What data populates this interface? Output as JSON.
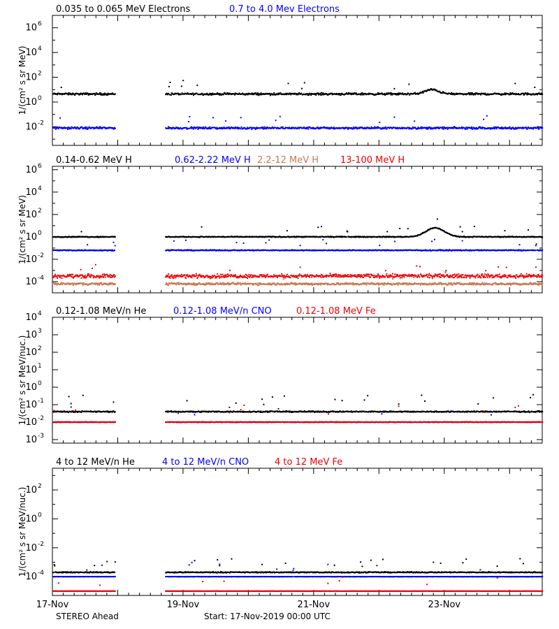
{
  "footer": {
    "spacecraft": "STEREO Ahead",
    "start": "Start: 17-Nov-2019 00:00 UTC"
  },
  "chart_data": [
    {
      "type": "scatter",
      "title": "",
      "xlabel": "",
      "ylabel": "1/(cm² s sr MeV)",
      "yscale": "log",
      "ylim_exp": [
        -3.5,
        7
      ],
      "ytick_exps": [
        -2,
        0,
        2,
        4,
        6
      ],
      "xlim_days": [
        0,
        7.5
      ],
      "xticks": [
        "17-Nov",
        "19-Nov",
        "21-Nov",
        "23-Nov"
      ],
      "gap_days": [
        0.95,
        1.72
      ],
      "series": [
        {
          "name": "0.035 to 0.065 MeV Electrons",
          "color": "#000000",
          "base_exp": 0.65,
          "spread": 0.12,
          "bump": {
            "day": 5.8,
            "height": 0.35,
            "width": 0.15
          }
        },
        {
          "name": "0.7 to 4.0 Mev Electrons",
          "color": "#0000ff",
          "base_exp": -2.1,
          "spread": 0.12
        }
      ]
    },
    {
      "type": "scatter",
      "title": "",
      "xlabel": "",
      "ylabel": "1/(cm² s sr MeV)",
      "yscale": "log",
      "ylim_exp": [
        -5,
        6.3
      ],
      "ytick_exps": [
        -4,
        -2,
        0,
        2,
        4,
        6
      ],
      "xlim_days": [
        0,
        7.5
      ],
      "xticks": [
        "17-Nov",
        "19-Nov",
        "21-Nov",
        "23-Nov"
      ],
      "gap_days": [
        0.95,
        1.72
      ],
      "series": [
        {
          "name": "0.14-0.62 MeV H",
          "color": "#000000",
          "base_exp": 0.0,
          "spread": 0.06,
          "bump": {
            "day": 5.85,
            "height": 0.8,
            "width": 0.2
          }
        },
        {
          "name": "0.62-2.22 MeV H",
          "color": "#0000ff",
          "base_exp": -1.2,
          "spread": 0.06
        },
        {
          "name": "2.2-12 MeV H",
          "color": "#c87850",
          "base_exp": -4.2,
          "spread": 0.15
        },
        {
          "name": "13-100 MeV H",
          "color": "#ee0000",
          "base_exp": -3.5,
          "spread": 0.25
        }
      ]
    },
    {
      "type": "scatter",
      "title": "",
      "xlabel": "",
      "ylabel": "1/(cm² s sr MeV/nuc.)",
      "yscale": "log",
      "ylim_exp": [
        -3.2,
        4
      ],
      "ytick_exps": [
        -3,
        -2,
        -1,
        0,
        1,
        2,
        3,
        4
      ],
      "xlim_days": [
        0,
        7.5
      ],
      "xticks": [
        "17-Nov",
        "19-Nov",
        "21-Nov",
        "23-Nov"
      ],
      "gap_days": [
        0.95,
        1.72
      ],
      "series": [
        {
          "name": "0.12-1.08 MeV/n He",
          "color": "#000000",
          "base_exp": -1.4,
          "spread": 0.05
        },
        {
          "name": "0.12-1.08 MeV/n CNO",
          "color": "#0000ff",
          "base_exp": -2.0,
          "spread": 0.02
        },
        {
          "name": "0.12-1.08 MeV Fe",
          "color": "#ee0000",
          "base_exp": -2.0,
          "spread": 0.02
        }
      ]
    },
    {
      "type": "scatter",
      "title": "",
      "xlabel": "",
      "ylabel": "1/(cm² s sr MeV/nuc.)",
      "yscale": "log",
      "ylim_exp": [
        -5.3,
        3.5
      ],
      "ytick_exps": [
        -4,
        -2,
        0,
        2
      ],
      "xlim_days": [
        0,
        7.5
      ],
      "xticks": [
        "17-Nov",
        "19-Nov",
        "21-Nov",
        "23-Nov"
      ],
      "gap_days": [
        0.95,
        1.72
      ],
      "series": [
        {
          "name": "4 to 12 MeV/n He",
          "color": "#000000",
          "base_exp": -3.7,
          "spread": 0.05
        },
        {
          "name": "4 to 12 MeV/n CNO",
          "color": "#0000ff",
          "base_exp": -4.0,
          "spread": 0.01
        },
        {
          "name": "4 to 12 MeV Fe",
          "color": "#ee0000",
          "base_exp": -5.0,
          "spread": 0.01
        }
      ]
    }
  ]
}
